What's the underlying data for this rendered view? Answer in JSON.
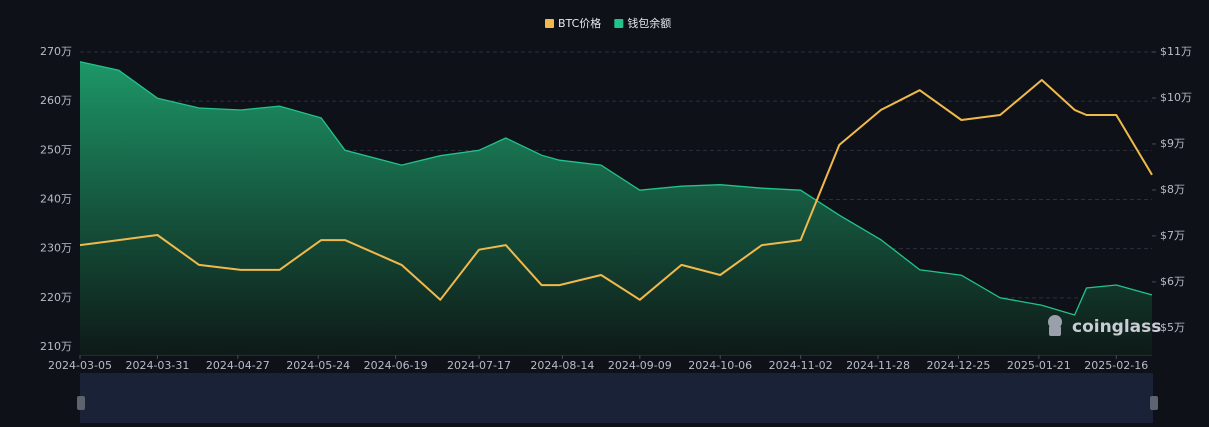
{
  "chart_data": {
    "type": "line",
    "x": [
      "2024-03-05",
      "2024-03-18",
      "2024-03-31",
      "2024-04-14",
      "2024-04-28",
      "2024-05-11",
      "2024-05-25",
      "2024-06-02",
      "2024-06-21",
      "2024-07-04",
      "2024-07-17",
      "2024-07-26",
      "2024-08-07",
      "2024-08-13",
      "2024-08-27",
      "2024-09-09",
      "2024-09-23",
      "2024-10-06",
      "2024-10-20",
      "2024-11-02",
      "2024-11-15",
      "2024-11-29",
      "2024-12-12",
      "2024-12-26",
      "2025-01-08",
      "2025-01-22",
      "2025-02-02",
      "2025-02-06",
      "2025-02-16",
      "2025-02-28"
    ],
    "xlim": [
      "2024-03-05",
      "2025-02-28"
    ],
    "xticks": [
      "2024-03-05",
      "2024-03-31",
      "2024-04-27",
      "2024-05-24",
      "2024-06-19",
      "2024-07-17",
      "2024-08-14",
      "2024-09-09",
      "2024-10-06",
      "2024-11-02",
      "2024-11-28",
      "2024-12-25",
      "2025-01-21",
      "2025-02-16"
    ],
    "series": [
      {
        "name": "BTC价格",
        "color": "#f0b94b",
        "type": "line",
        "axis": "y2",
        "values": [
          68000,
          69100,
          70200,
          63700,
          62600,
          62600,
          69100,
          69100,
          63700,
          56100,
          67000,
          68000,
          59300,
          59300,
          61500,
          56100,
          63700,
          61500,
          68000,
          69100,
          89800,
          97400,
          101700,
          95200,
          96300,
          103900,
          97400,
          96300,
          96300,
          83300
        ]
      },
      {
        "name": "钱包余额",
        "color": "#22c38a",
        "type": "area",
        "axis": "y",
        "values": [
          2680000,
          2663000,
          2606000,
          2586000,
          2582000,
          2590000,
          2566000,
          2500000,
          2470000,
          2489000,
          2500000,
          2525000,
          2490000,
          2480000,
          2470000,
          2419000,
          2427000,
          2430000,
          2423000,
          2419000,
          2368000,
          2318000,
          2257000,
          2246000,
          2200000,
          2185000,
          2165000,
          2220000,
          2226000,
          2206000
        ]
      }
    ],
    "ylim": [
      2083700,
      2700000
    ],
    "yticks": [
      {
        "value": 2100000,
        "label": "210万"
      },
      {
        "value": 2200000,
        "label": "220万"
      },
      {
        "value": 2300000,
        "label": "230万"
      },
      {
        "value": 2400000,
        "label": "240万"
      },
      {
        "value": 2500000,
        "label": "250万"
      },
      {
        "value": 2600000,
        "label": "260万"
      },
      {
        "value": 2700000,
        "label": "270万"
      }
    ],
    "y2lim": [
      44100,
      110000
    ],
    "y2ticks": [
      {
        "value": 50000,
        "label": "$5万"
      },
      {
        "value": 60000,
        "label": "$6万"
      },
      {
        "value": 70000,
        "label": "$7万"
      },
      {
        "value": 80000,
        "label": "$8万"
      },
      {
        "value": 90000,
        "label": "$9万"
      },
      {
        "value": 100000,
        "label": "$10万"
      },
      {
        "value": 110000,
        "label": "$11万"
      }
    ],
    "grid": true,
    "legend": "top",
    "watermark": "coinglass"
  }
}
